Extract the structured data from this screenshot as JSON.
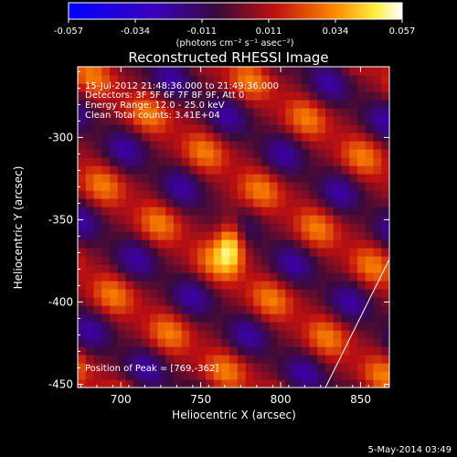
{
  "chart_data": {
    "type": "heatmap",
    "title": "Reconstructed RHESSI Image",
    "xlabel": "Heliocentric X (arcsec)",
    "ylabel": "Heliocentric Y (arcsec)",
    "xlim": [
      673,
      868
    ],
    "ylim": [
      -452,
      -257
    ],
    "x_ticks": [
      "700",
      "750",
      "800",
      "850"
    ],
    "x_tick_values": [
      700,
      750,
      800,
      850
    ],
    "y_ticks": [
      "-300",
      "-350",
      "-400",
      "-450"
    ],
    "y_tick_values": [
      -300,
      -350,
      -400,
      -450
    ],
    "colorbar": {
      "min": -0.057,
      "max": 0.057,
      "ticks": [
        "-0.057",
        "-0.034",
        "-0.011",
        "0.011",
        "0.034",
        "0.057"
      ],
      "unit_label": "(photons cm⁻² s⁻¹ asec⁻²)"
    },
    "annotations": [
      "15-Jul-2012 21:48:36.000 to 21:49:36.000",
      "Detectors: 3F 5F 6F 7F 8F 9F, Att 0",
      "Energy Range: 12.0 - 25.0 keV",
      "Clean     Total counts: 3.41E+04"
    ],
    "peak": {
      "label": "Position of Peak = [769,-362]",
      "x": 769,
      "y": -362,
      "value": 0.057
    },
    "limb_line": [
      [
        828,
        -452
      ],
      [
        868,
        -374
      ]
    ]
  },
  "footer": {
    "timestamp": "5-May-2014 03:49"
  },
  "colors": {
    "background": "#000000",
    "text": "#ffffff",
    "colormap": "blue-purple-red-yellow-white"
  }
}
